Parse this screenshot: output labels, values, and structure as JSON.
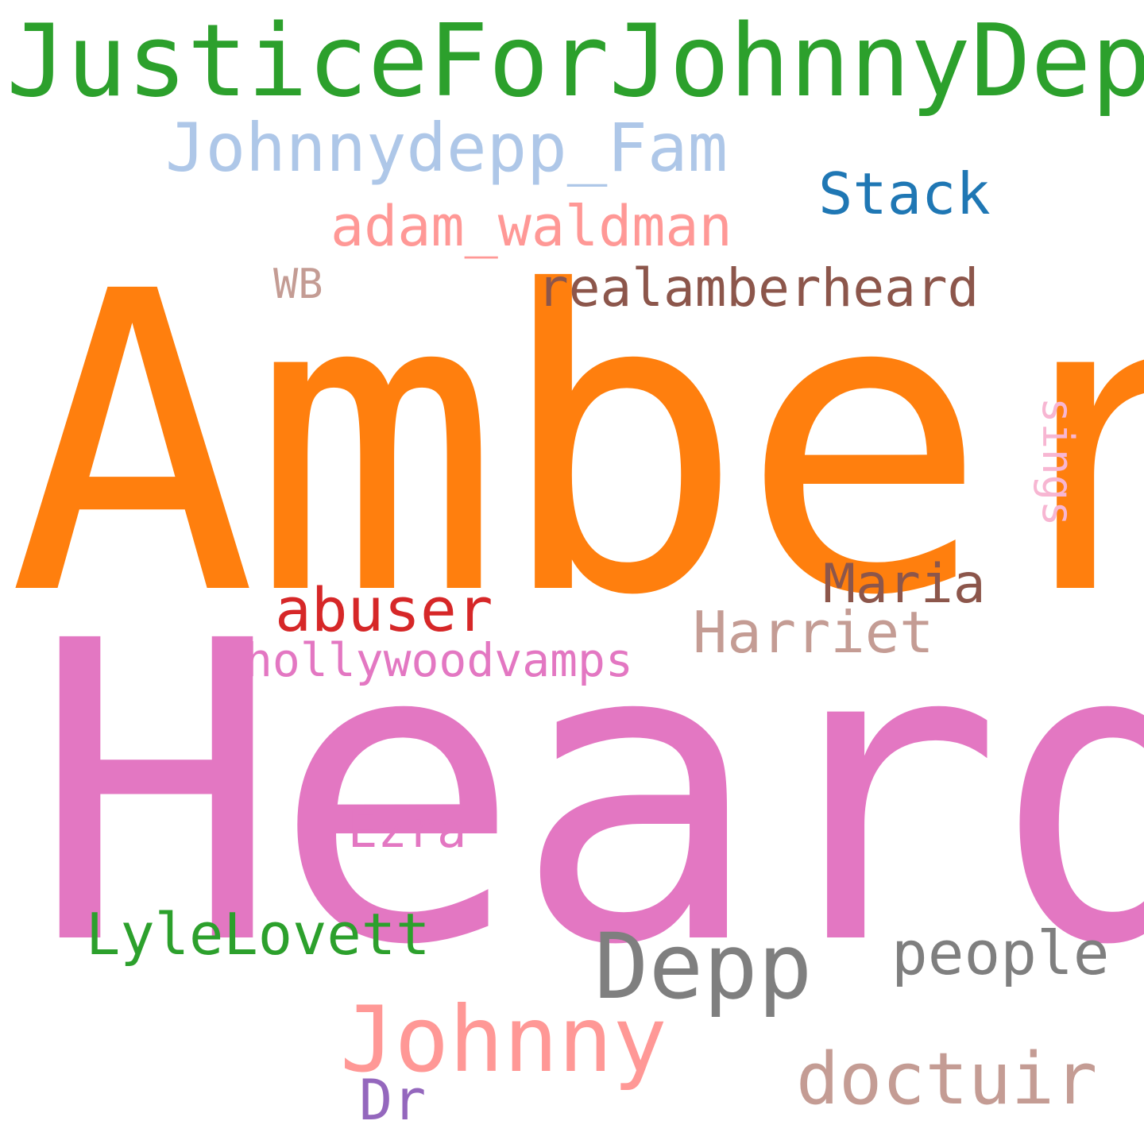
{
  "words": {
    "justice": {
      "text": "JusticeForJohnnyDepp",
      "color": "#2ca02c"
    },
    "fam": {
      "text": "Johnnydepp_Fam",
      "color": "#aec7e8"
    },
    "stack": {
      "text": "Stack",
      "color": "#1f77b4"
    },
    "adam": {
      "text": "adam_waldman",
      "color": "#ff9896"
    },
    "wb": {
      "text": "WB",
      "color": "#c49c94"
    },
    "realamber": {
      "text": "realamberheard",
      "color": "#8c564b"
    },
    "amber": {
      "text": "Amber",
      "color": "#ff7f0e"
    },
    "sings": {
      "text": "sings",
      "color": "#f7b6d2"
    },
    "maria": {
      "text": "Maria",
      "color": "#8c564b"
    },
    "abuser": {
      "text": "abuser",
      "color": "#d62728"
    },
    "harriet": {
      "text": "Harriet",
      "color": "#c49c94"
    },
    "hollywood": {
      "text": "hollywoodvamps",
      "color": "#e377c2"
    },
    "heard": {
      "text": "Heard",
      "color": "#e377c2"
    },
    "ezra": {
      "text": "Ezra",
      "color": "#e377c2"
    },
    "lyle": {
      "text": "LyleLovett",
      "color": "#2ca02c"
    },
    "depp": {
      "text": "Depp",
      "color": "#7f7f7f"
    },
    "people": {
      "text": "people",
      "color": "#7f7f7f"
    },
    "johnny": {
      "text": "Johnny",
      "color": "#ff9896"
    },
    "doctuir": {
      "text": "doctuir",
      "color": "#c49c94"
    },
    "dr": {
      "text": "Dr",
      "color": "#9467bd"
    }
  }
}
